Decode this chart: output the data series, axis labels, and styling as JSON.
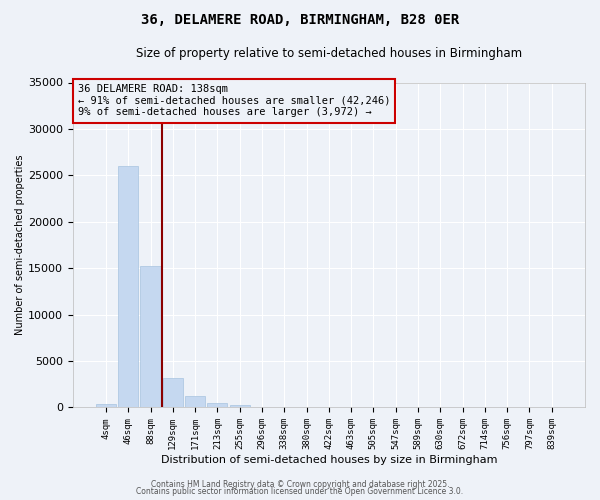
{
  "title": "36, DELAMERE ROAD, BIRMINGHAM, B28 0ER",
  "subtitle": "Size of property relative to semi-detached houses in Birmingham",
  "xlabel": "Distribution of semi-detached houses by size in Birmingham",
  "ylabel": "Number of semi-detached properties",
  "categories": [
    "4sqm",
    "46sqm",
    "88sqm",
    "129sqm",
    "171sqm",
    "213sqm",
    "255sqm",
    "296sqm",
    "338sqm",
    "380sqm",
    "422sqm",
    "463sqm",
    "505sqm",
    "547sqm",
    "589sqm",
    "630sqm",
    "672sqm",
    "714sqm",
    "756sqm",
    "797sqm",
    "839sqm"
  ],
  "values": [
    400,
    26000,
    15200,
    3200,
    1200,
    450,
    250,
    100,
    40,
    20,
    10,
    5,
    3,
    2,
    1,
    1,
    1,
    0,
    0,
    0,
    0
  ],
  "bar_color": "#c5d8f0",
  "bar_edgecolor": "#a8c4e0",
  "vline_color": "#8b0000",
  "vline_x_index": 2.5,
  "annotation_box_text": "36 DELAMERE ROAD: 138sqm\n← 91% of semi-detached houses are smaller (42,246)\n9% of semi-detached houses are larger (3,972) →",
  "annotation_box_edgecolor": "#cc0000",
  "ylim": [
    0,
    35000
  ],
  "yticks": [
    0,
    5000,
    10000,
    15000,
    20000,
    25000,
    30000,
    35000
  ],
  "background_color": "#eef2f8",
  "title_fontsize": 10,
  "subtitle_fontsize": 8.5,
  "footer_line1": "Contains HM Land Registry data © Crown copyright and database right 2025.",
  "footer_line2": "Contains public sector information licensed under the Open Government Licence 3.0.",
  "grid_color": "#ffffff"
}
